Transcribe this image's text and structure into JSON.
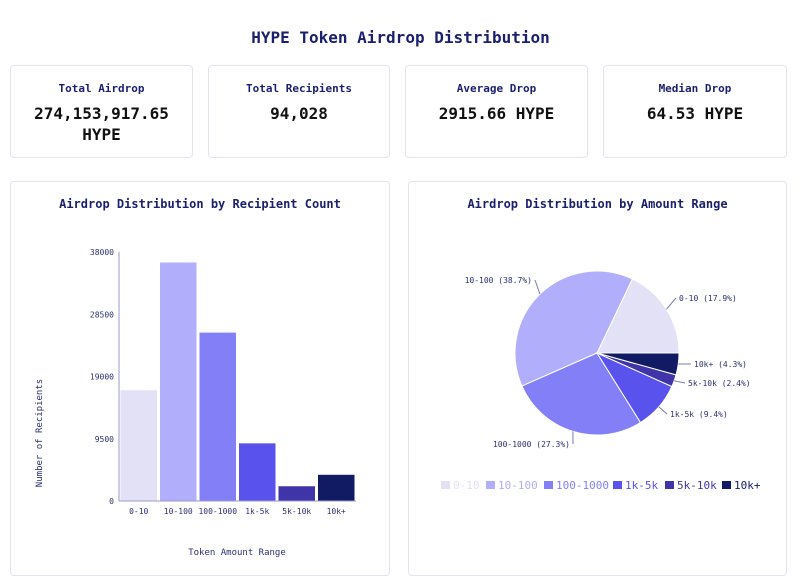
{
  "title": "HYPE Token Airdrop Distribution",
  "cards": [
    {
      "label": "Total Airdrop",
      "value": "274,153,917.65 HYPE"
    },
    {
      "label": "Total Recipients",
      "value": "94,028"
    },
    {
      "label": "Average Drop",
      "value": "2915.66 HYPE"
    },
    {
      "label": "Median Drop",
      "value": "64.53 HYPE"
    }
  ],
  "colors": [
    "#e2e1f5",
    "#b1aefc",
    "#8380f7",
    "#5a52ec",
    "#3f35a8",
    "#111b63"
  ],
  "chart_data": [
    {
      "type": "bar",
      "title": "Airdrop Distribution by Recipient Count",
      "xlabel": "Token Amount Range",
      "ylabel": "Number of Recipients",
      "categories": [
        "0-10",
        "10-100",
        "100-1000",
        "1k-5k",
        "5k-10k",
        "10k+"
      ],
      "values": [
        16900,
        36400,
        25700,
        8800,
        2250,
        4000
      ],
      "ylim": [
        0,
        38000
      ],
      "yticks": [
        "0",
        "9500",
        "19000",
        "28500",
        "38000"
      ],
      "grid": false
    },
    {
      "type": "pie",
      "title": "Airdrop Distribution by Amount Range",
      "categories": [
        "0-10",
        "10-100",
        "100-1000",
        "1k-5k",
        "5k-10k",
        "10k+"
      ],
      "values": [
        17.9,
        38.7,
        27.3,
        9.4,
        2.4,
        4.3
      ],
      "labels": [
        "0-10 (17.9%)",
        "10-100 (38.7%)",
        "100-1000 (27.3%)",
        "1k-5k (9.4%)",
        "5k-10k (2.4%)",
        "10k+ (4.3%)"
      ],
      "legend": "bottom"
    }
  ]
}
